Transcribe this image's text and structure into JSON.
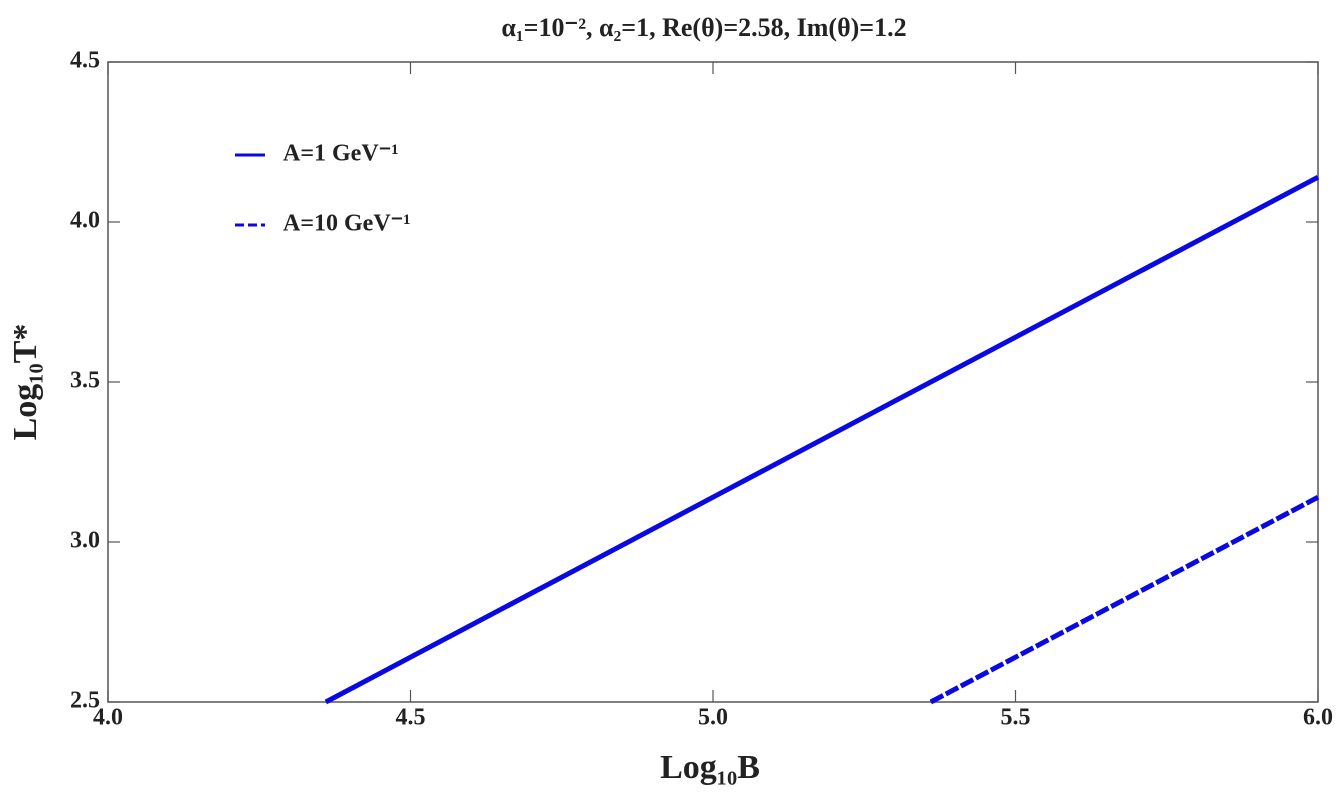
{
  "chart_data": {
    "type": "line",
    "title": "α₁=10⁻²,    α₂=1,    Re(θ)=2.58,    Im(θ)=1.2",
    "x_label": "Log₁₀B",
    "y_label": "Log₁₀T*",
    "series": [
      {
        "name": "A=1 GeV⁻¹",
        "color": "#0a0ae0",
        "line_style": "solid",
        "x": [
          4.36,
          4.5,
          5.0,
          5.5,
          6.0
        ],
        "values": [
          2.5,
          2.64,
          3.14,
          3.64,
          4.14
        ]
      },
      {
        "name": "A=10 GeV⁻¹",
        "color": "#0a0ae0",
        "line_style": "dashed",
        "x": [
          5.36,
          5.5,
          6.0
        ],
        "values": [
          2.5,
          2.64,
          3.14
        ]
      }
    ],
    "xlim": [
      4,
      6
    ],
    "xticks": [
      {
        "value": 4,
        "label": "4.0"
      },
      4.5,
      {
        "value": 5,
        "label": "5.0"
      },
      5.5,
      {
        "value": 6,
        "label": "6.0"
      }
    ],
    "ylim": [
      2.5,
      4.5
    ],
    "yticks": [
      2.5,
      {
        "value": 3,
        "label": "3.0"
      },
      3.5,
      {
        "value": 4,
        "label": "4.0"
      },
      4.5
    ],
    "legend": "upper left"
  }
}
